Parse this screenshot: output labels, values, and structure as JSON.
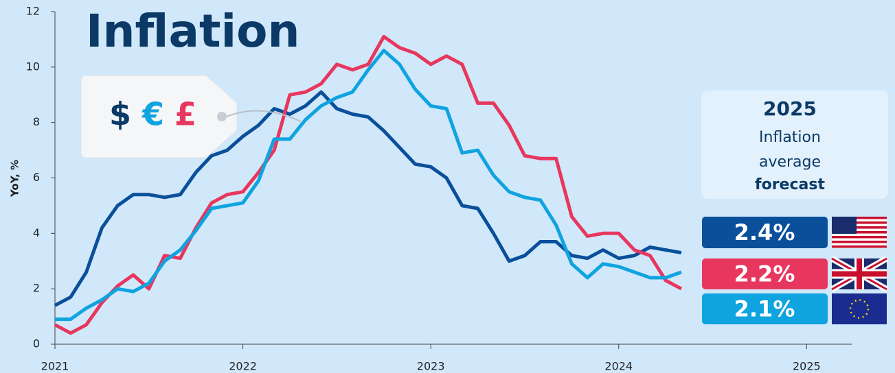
{
  "chart_data": {
    "type": "line",
    "title": "Inflation",
    "ylabel": "YoY, %",
    "xlim": [
      2021,
      2025.24
    ],
    "xticks": [
      2021,
      2022,
      2023,
      2024,
      2025
    ],
    "ylim": [
      0,
      12
    ],
    "yticks": [
      0,
      2,
      4,
      6,
      8,
      10,
      12
    ],
    "x": [
      "2021-01",
      "2021-02",
      "2021-03",
      "2021-04",
      "2021-05",
      "2021-06",
      "2021-07",
      "2021-08",
      "2021-09",
      "2021-10",
      "2021-11",
      "2021-12",
      "2022-01",
      "2022-02",
      "2022-03",
      "2022-04",
      "2022-05",
      "2022-06",
      "2022-07",
      "2022-08",
      "2022-09",
      "2022-10",
      "2022-11",
      "2022-12",
      "2023-01",
      "2023-02",
      "2023-03",
      "2023-04",
      "2023-05",
      "2023-06",
      "2023-07",
      "2023-08",
      "2023-09",
      "2023-10",
      "2023-11",
      "2023-12",
      "2024-01",
      "2024-02",
      "2024-03",
      "2024-04",
      "2024-05"
    ],
    "series": [
      {
        "color": "#0a4f9a",
        "values": [
          1.4,
          1.7,
          2.6,
          4.2,
          5.0,
          5.4,
          5.4,
          5.3,
          5.4,
          6.2,
          6.8,
          7.0,
          7.5,
          7.9,
          8.5,
          8.3,
          8.6,
          9.1,
          8.5,
          8.3,
          8.2,
          7.7,
          7.1,
          6.5,
          6.4,
          6.0,
          5.0,
          4.9,
          4.0,
          3.0,
          3.2,
          3.7,
          3.7,
          3.2,
          3.1,
          3.4,
          3.1,
          3.2,
          3.5,
          3.4,
          3.3
        ]
      },
      {
        "color": "#e8375e",
        "values": [
          0.7,
          0.4,
          0.7,
          1.5,
          2.1,
          2.5,
          2.0,
          3.2,
          3.1,
          4.2,
          5.1,
          5.4,
          5.5,
          6.2,
          7.0,
          9.0,
          9.1,
          9.4,
          10.1,
          9.9,
          10.1,
          11.1,
          10.7,
          10.5,
          10.1,
          10.4,
          10.1,
          8.7,
          8.7,
          7.9,
          6.8,
          6.7,
          6.7,
          4.6,
          3.9,
          4.0,
          4.0,
          3.4,
          3.2,
          2.3,
          2.0
        ]
      },
      {
        "color": "#0fa3e0",
        "values": [
          0.9,
          0.9,
          1.3,
          1.6,
          2.0,
          1.9,
          2.2,
          3.0,
          3.4,
          4.1,
          4.9,
          5.0,
          5.1,
          5.9,
          7.4,
          7.4,
          8.1,
          8.6,
          8.9,
          9.1,
          9.9,
          10.6,
          10.1,
          9.2,
          8.6,
          8.5,
          6.9,
          7.0,
          6.1,
          5.5,
          5.3,
          5.2,
          4.3,
          2.9,
          2.4,
          2.9,
          2.8,
          2.6,
          2.4,
          2.4,
          2.6
        ]
      }
    ],
    "tag": [
      "$",
      "€",
      "£"
    ],
    "forecast": {
      "title": "2025",
      "lines": [
        "Inflation",
        "average"
      ],
      "emphasis": "forecast",
      "values": [
        2.4,
        2.2,
        2.1
      ],
      "value_labels": [
        "2.4%",
        "2.2%",
        "2.1%"
      ],
      "colors": [
        "#0a4f9a",
        "#e8375e",
        "#0fa3e0"
      ]
    }
  }
}
